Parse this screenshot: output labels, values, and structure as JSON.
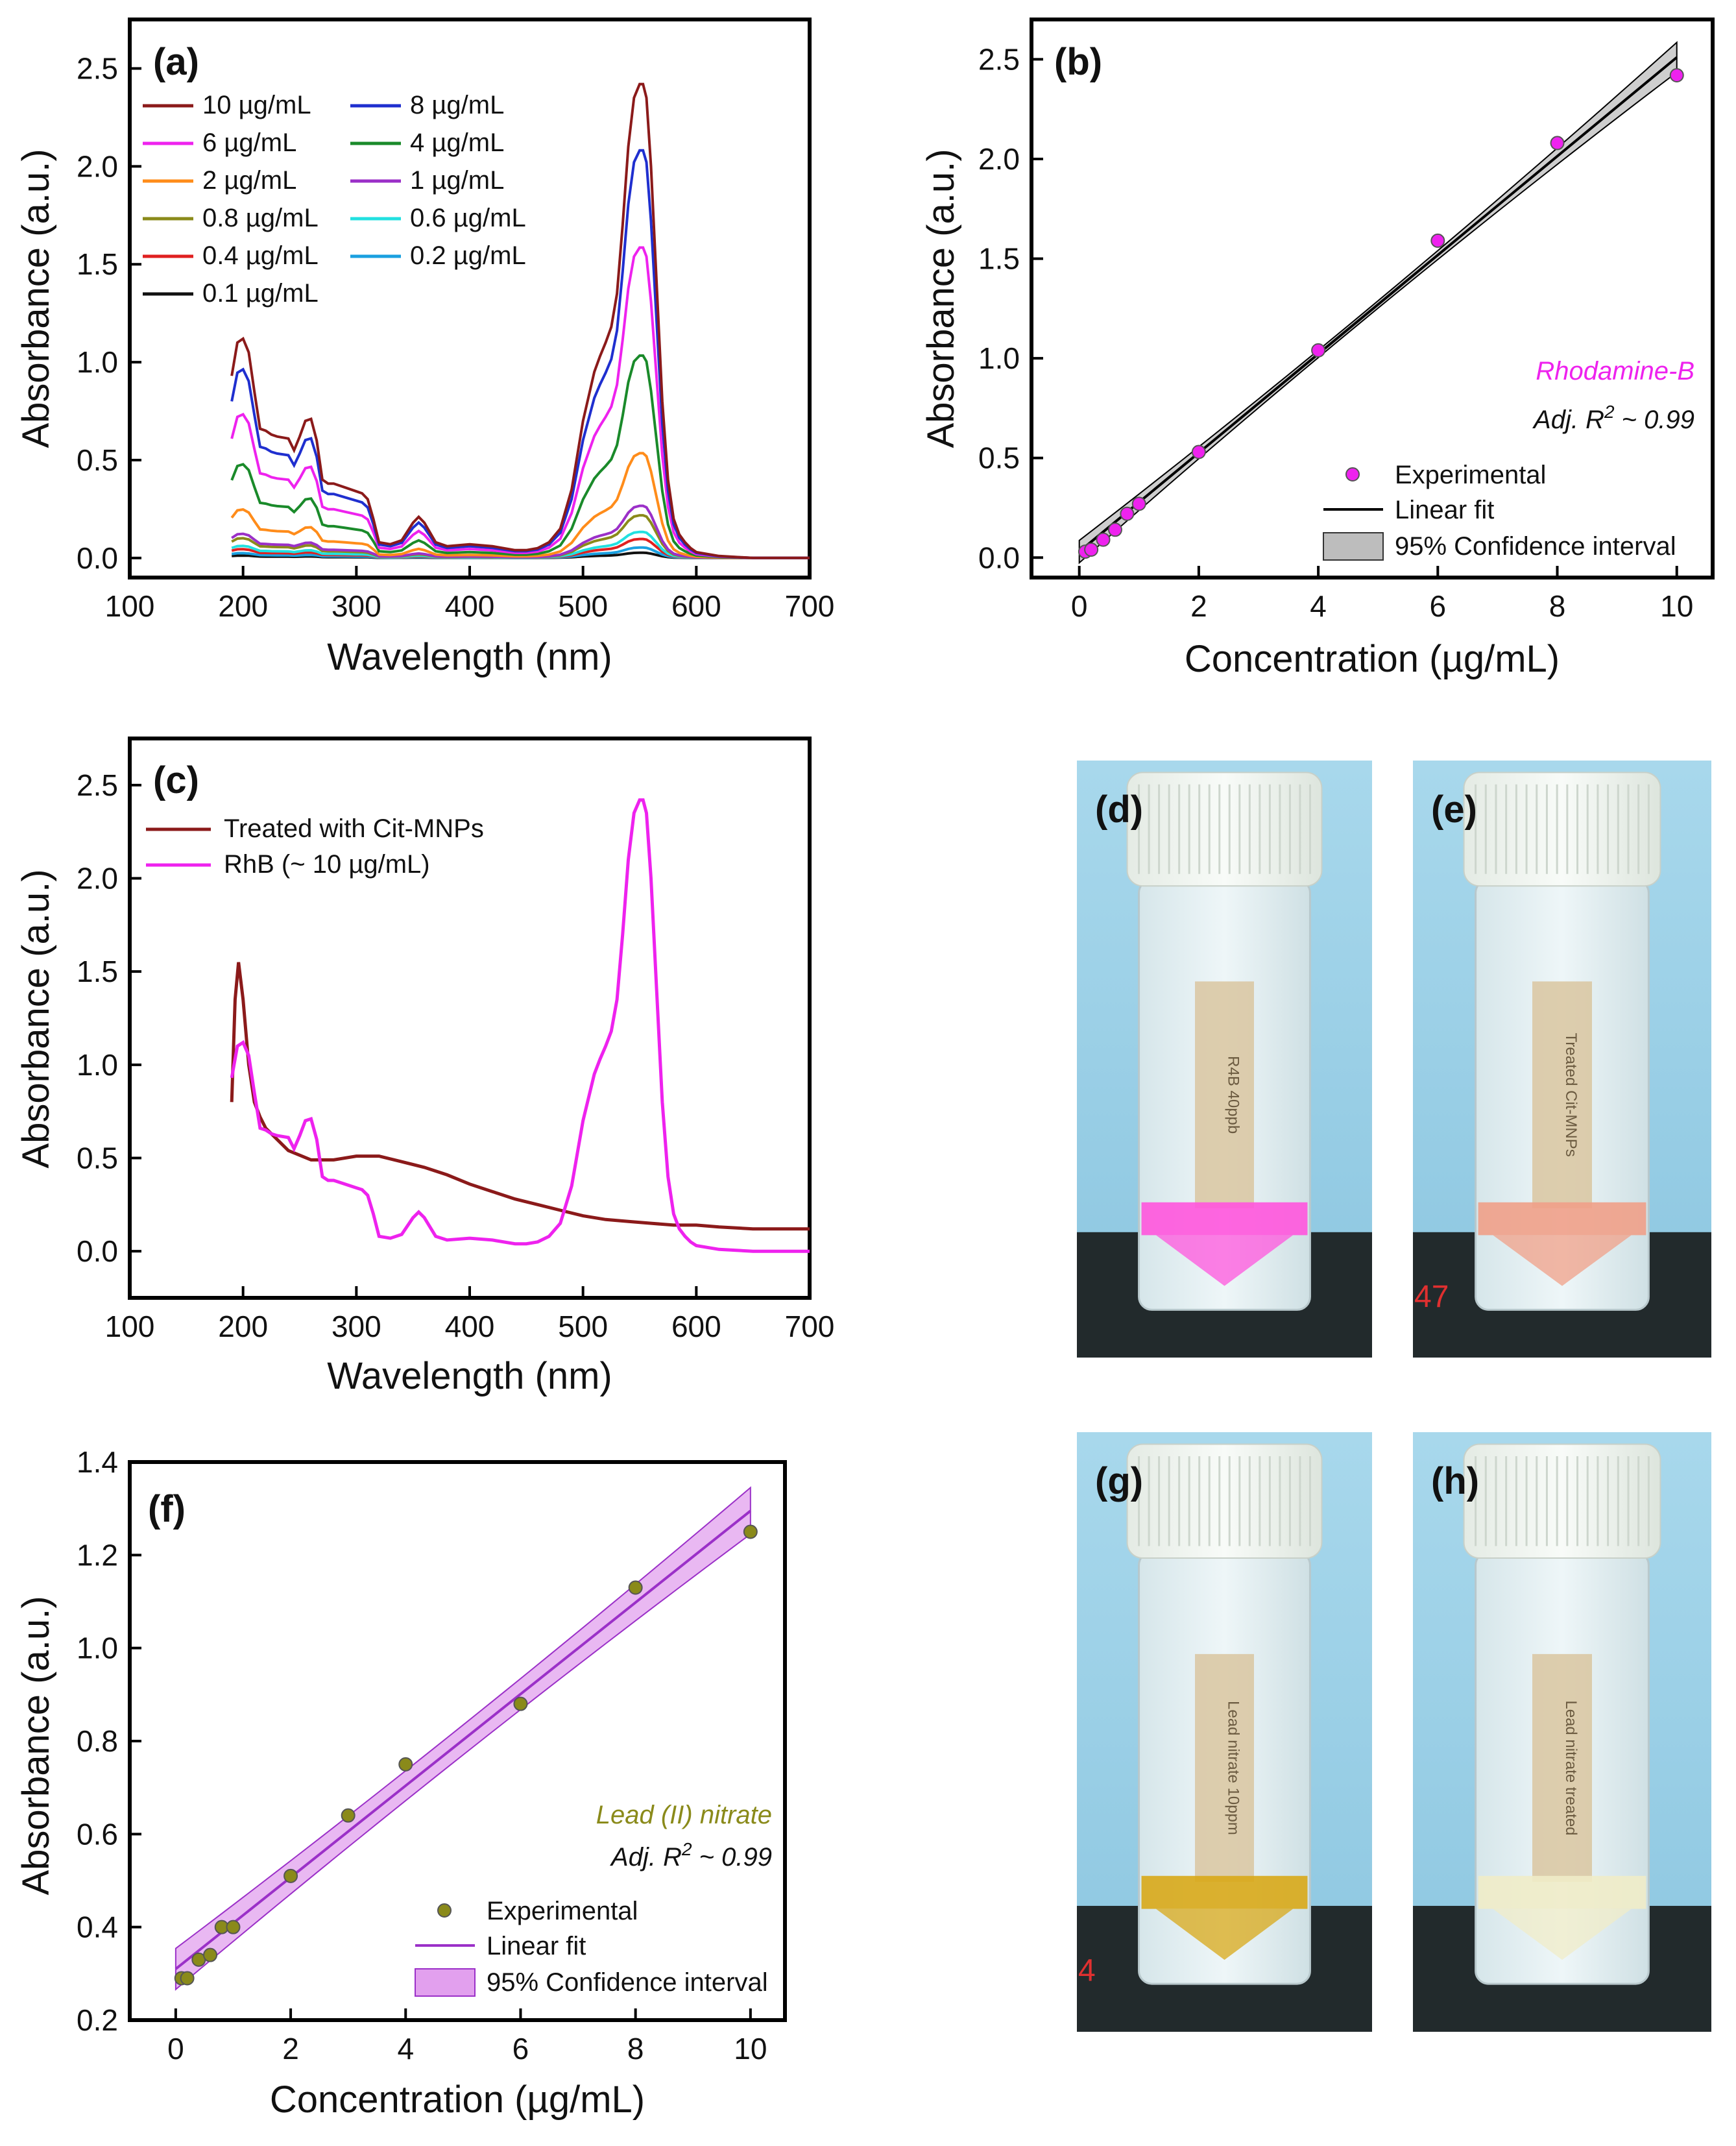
{
  "chart_data": [
    {
      "id": "a",
      "type": "line",
      "panel_label": "(a)",
      "xlabel": "Wavelength (nm)",
      "ylabel": "Absorbance (a.u.)",
      "xlim": [
        100,
        700
      ],
      "ylim": [
        -0.1,
        2.75
      ],
      "xticks": [
        "100",
        "200",
        "300",
        "400",
        "500",
        "600",
        "700"
      ],
      "yticks": [
        "0.0",
        "0.5",
        "1.0",
        "1.5",
        "2.0",
        "2.5"
      ],
      "series": [
        {
          "name": "10 µg/mL",
          "color": "#8b1a1a",
          "scale": 1.0
        },
        {
          "name": "8 µg/mL",
          "color": "#1f2fcf",
          "scale": 0.86
        },
        {
          "name": "6 µg/mL",
          "color": "#ee22ee",
          "scale": 0.655
        },
        {
          "name": "4 µg/mL",
          "color": "#1a8a2a",
          "scale": 0.427
        },
        {
          "name": "2 µg/mL",
          "color": "#ff8c1a",
          "scale": 0.221
        },
        {
          "name": "1 µg/mL",
          "color": "#9b30c8",
          "scale": 0.11
        },
        {
          "name": "0.8 µg/mL",
          "color": "#8a8a1a",
          "scale": 0.09
        },
        {
          "name": "0.6 µg/mL",
          "color": "#22e0e0",
          "scale": 0.055
        },
        {
          "name": "0.4 µg/mL",
          "color": "#e02020",
          "scale": 0.04
        },
        {
          "name": "0.2 µg/mL",
          "color": "#1aa0e0",
          "scale": 0.022
        },
        {
          "name": "0.1 µg/mL",
          "color": "#111111",
          "scale": 0.011
        }
      ],
      "reference_spectrum": {
        "x": [
          190,
          195,
          200,
          205,
          210,
          215,
          220,
          225,
          230,
          240,
          245,
          250,
          255,
          260,
          265,
          270,
          275,
          280,
          290,
          300,
          305,
          310,
          315,
          320,
          330,
          340,
          350,
          355,
          360,
          370,
          380,
          400,
          420,
          440,
          450,
          460,
          470,
          480,
          490,
          500,
          510,
          515,
          520,
          525,
          530,
          535,
          540,
          545,
          550,
          553,
          556,
          560,
          565,
          570,
          575,
          580,
          585,
          590,
          595,
          600,
          620,
          650,
          700
        ],
        "y": [
          0.93,
          1.1,
          1.12,
          1.05,
          0.85,
          0.66,
          0.65,
          0.63,
          0.62,
          0.61,
          0.55,
          0.62,
          0.7,
          0.71,
          0.6,
          0.4,
          0.38,
          0.38,
          0.36,
          0.34,
          0.33,
          0.3,
          0.2,
          0.08,
          0.07,
          0.09,
          0.18,
          0.21,
          0.18,
          0.08,
          0.06,
          0.07,
          0.06,
          0.04,
          0.04,
          0.05,
          0.08,
          0.15,
          0.35,
          0.7,
          0.95,
          1.03,
          1.1,
          1.18,
          1.35,
          1.7,
          2.1,
          2.35,
          2.42,
          2.42,
          2.35,
          2.0,
          1.4,
          0.8,
          0.4,
          0.2,
          0.12,
          0.08,
          0.05,
          0.03,
          0.01,
          0.0,
          0.0
        ]
      }
    },
    {
      "id": "b",
      "type": "scatter",
      "panel_label": "(b)",
      "xlabel": "Concentration (µg/mL)",
      "ylabel": "Absorbance (a.u.)",
      "xlim": [
        -0.8,
        10.6
      ],
      "ylim": [
        -0.1,
        2.7
      ],
      "xticks": [
        "0",
        "2",
        "4",
        "6",
        "8",
        "10"
      ],
      "yticks": [
        "0.0",
        "0.5",
        "1.0",
        "1.5",
        "2.0",
        "2.5"
      ],
      "points": {
        "x": [
          0.1,
          0.2,
          0.4,
          0.6,
          0.8,
          1,
          2,
          4,
          6,
          8,
          10
        ],
        "y": [
          0.03,
          0.04,
          0.09,
          0.14,
          0.22,
          0.27,
          0.53,
          1.04,
          1.59,
          2.08,
          2.42
        ]
      },
      "fit": {
        "intercept": 0.03,
        "slope": 0.248,
        "ci_low": 0.018,
        "ci_high": 0.075
      },
      "point_color": "#ee22ee",
      "line_color": "#000000",
      "band_color": "#bdbdbd",
      "annotation": "Rhodamine-B",
      "annotation_color": "#ee22ee",
      "r2_prefix": "Adj. R",
      "r2_sup": "2",
      "r2_suffix": " ~ 0.99",
      "legend": [
        "Experimental",
        "Linear fit",
        "95% Confidence interval"
      ]
    },
    {
      "id": "c",
      "type": "line",
      "panel_label": "(c)",
      "xlabel": "Wavelength (nm)",
      "ylabel": "Absorbance (a.u.)",
      "xlim": [
        100,
        700
      ],
      "ylim": [
        -0.25,
        2.75
      ],
      "xticks": [
        "100",
        "200",
        "300",
        "400",
        "500",
        "600",
        "700"
      ],
      "yticks": [
        "0.0",
        "0.5",
        "1.0",
        "1.5",
        "2.0",
        "2.5"
      ],
      "series": [
        {
          "name": "Treated with Cit-MNPs",
          "color": "#8b1a1a",
          "x": [
            190,
            193,
            196,
            200,
            205,
            210,
            215,
            220,
            230,
            240,
            260,
            280,
            300,
            320,
            340,
            360,
            380,
            400,
            420,
            440,
            460,
            480,
            500,
            520,
            540,
            560,
            580,
            600,
            620,
            650,
            700
          ],
          "y": [
            0.8,
            1.35,
            1.55,
            1.35,
            1.0,
            0.8,
            0.72,
            0.66,
            0.6,
            0.54,
            0.49,
            0.49,
            0.51,
            0.51,
            0.48,
            0.45,
            0.41,
            0.36,
            0.32,
            0.28,
            0.25,
            0.22,
            0.19,
            0.17,
            0.16,
            0.15,
            0.14,
            0.14,
            0.13,
            0.12,
            0.12
          ]
        },
        {
          "name": "RhB (~ 10 µg/mL)",
          "color": "#ee22ee",
          "x": [
            190,
            195,
            200,
            205,
            210,
            215,
            220,
            225,
            230,
            240,
            245,
            250,
            255,
            260,
            265,
            270,
            275,
            280,
            290,
            300,
            305,
            310,
            315,
            320,
            330,
            340,
            350,
            355,
            360,
            370,
            380,
            400,
            420,
            440,
            450,
            460,
            470,
            480,
            490,
            500,
            510,
            515,
            520,
            525,
            530,
            535,
            540,
            545,
            550,
            553,
            556,
            560,
            565,
            570,
            575,
            580,
            585,
            590,
            595,
            600,
            620,
            650,
            700
          ],
          "y": [
            0.93,
            1.1,
            1.12,
            1.05,
            0.85,
            0.66,
            0.65,
            0.63,
            0.62,
            0.61,
            0.55,
            0.62,
            0.7,
            0.71,
            0.6,
            0.4,
            0.38,
            0.38,
            0.36,
            0.34,
            0.33,
            0.3,
            0.2,
            0.08,
            0.07,
            0.09,
            0.18,
            0.21,
            0.18,
            0.08,
            0.06,
            0.07,
            0.06,
            0.04,
            0.04,
            0.05,
            0.08,
            0.15,
            0.35,
            0.7,
            0.95,
            1.03,
            1.1,
            1.18,
            1.35,
            1.7,
            2.1,
            2.35,
            2.42,
            2.42,
            2.35,
            2.0,
            1.4,
            0.8,
            0.4,
            0.2,
            0.12,
            0.08,
            0.05,
            0.03,
            0.01,
            0.0,
            0.0
          ]
        }
      ]
    },
    {
      "id": "f",
      "type": "scatter",
      "panel_label": "(f)",
      "xlabel": "Concentration (µg/mL)",
      "ylabel": "Absorbance (a.u.)",
      "xlim": [
        -0.8,
        10.6
      ],
      "ylim": [
        0.2,
        1.4
      ],
      "xticks": [
        "0",
        "2",
        "4",
        "6",
        "8",
        "10"
      ],
      "yticks": [
        "0.2",
        "0.4",
        "0.6",
        "0.8",
        "1.0",
        "1.2",
        "1.4"
      ],
      "points": {
        "x": [
          0.1,
          0.2,
          0.4,
          0.6,
          0.8,
          1,
          2,
          3,
          4,
          6,
          8,
          10
        ],
        "y": [
          0.29,
          0.29,
          0.33,
          0.34,
          0.4,
          0.4,
          0.51,
          0.64,
          0.75,
          0.88,
          1.13,
          1.25
        ]
      },
      "fit": {
        "intercept": 0.31,
        "slope": 0.0985,
        "ci_low": 0.032,
        "ci_high": 0.05
      },
      "point_color": "#8a8a1a",
      "line_color": "#9b30c8",
      "band_color": "#e2a0ee",
      "annotation": "Lead (II) nitrate",
      "annotation_color": "#8a8a1a",
      "r2_prefix": "Adj. R",
      "r2_sup": "2",
      "r2_suffix": " ~ 0.99",
      "legend": [
        "Experimental",
        "Linear fit",
        "95% Confidence interval"
      ]
    }
  ],
  "photos": [
    {
      "id": "d",
      "label": "(d)",
      "liquid_color": "#ff55dd",
      "sticker_text": "R4B  40ppb"
    },
    {
      "id": "e",
      "label": "(e)",
      "liquid_color": "#f0a088",
      "sticker_text": "Treated Cit-MNPs",
      "edge_text": "47"
    },
    {
      "id": "g",
      "label": "(g)",
      "liquid_color": "#d8a818",
      "sticker_text": "Lead nitrate 10ppm",
      "edge_text": "4"
    },
    {
      "id": "h",
      "label": "(h)",
      "liquid_color": "#f0ecc8",
      "sticker_text": "Lead nitrate treated"
    }
  ]
}
